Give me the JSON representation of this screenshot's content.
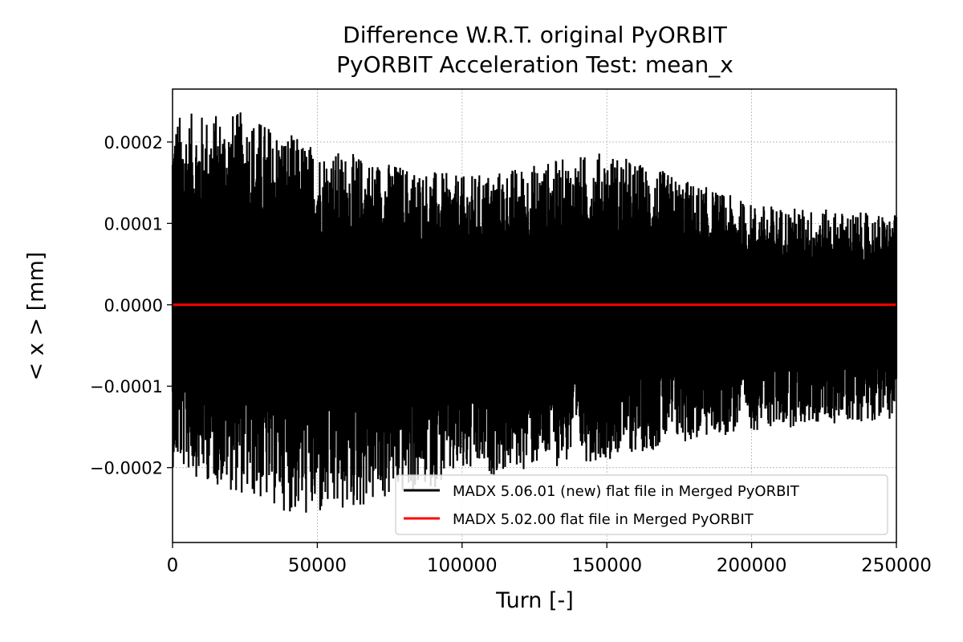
{
  "chart_data": {
    "type": "line",
    "title": "Difference W.R.T. original PyORBIT",
    "subtitle": "PyORBIT Acceleration Test: mean_x",
    "xlabel": "Turn [-]",
    "ylabel": "< x >  [mm]",
    "xlim": [
      0,
      250000
    ],
    "ylim": [
      -0.000292,
      0.000265
    ],
    "x_ticks": [
      0,
      50000,
      100000,
      150000,
      200000,
      250000
    ],
    "x_tick_labels": [
      "0",
      "50000",
      "100000",
      "150000",
      "200000",
      "250000"
    ],
    "y_ticks": [
      0.0002,
      0.0001,
      0.0,
      -0.0001,
      -0.0002
    ],
    "y_tick_labels": [
      "0.0002",
      "0.0001",
      "0.0000",
      "−0.0001",
      "−0.0002"
    ],
    "grid": true,
    "legend_position": "lower-right",
    "series": [
      {
        "name": "MADX 5.06.01 (new) flat file in Merged PyORBIT",
        "color": "#000000",
        "kind": "noisy-oscillation",
        "envelope": {
          "x": [
            0,
            25000,
            50000,
            100000,
            150000,
            200000,
            250000
          ],
          "upper": [
            0.000235,
            0.000238,
            0.000195,
            0.000158,
            0.00019,
            0.000125,
            0.00011
          ],
          "lower": [
            -0.0002,
            -0.000236,
            -0.000268,
            -0.000215,
            -0.00019,
            -0.000155,
            -0.00014
          ]
        }
      },
      {
        "name": "MADX 5.02.00 flat file in Merged PyORBIT",
        "color": "#ff0000",
        "kind": "line",
        "x": [
          0,
          250000
        ],
        "y": [
          0.0,
          0.0
        ]
      }
    ]
  }
}
